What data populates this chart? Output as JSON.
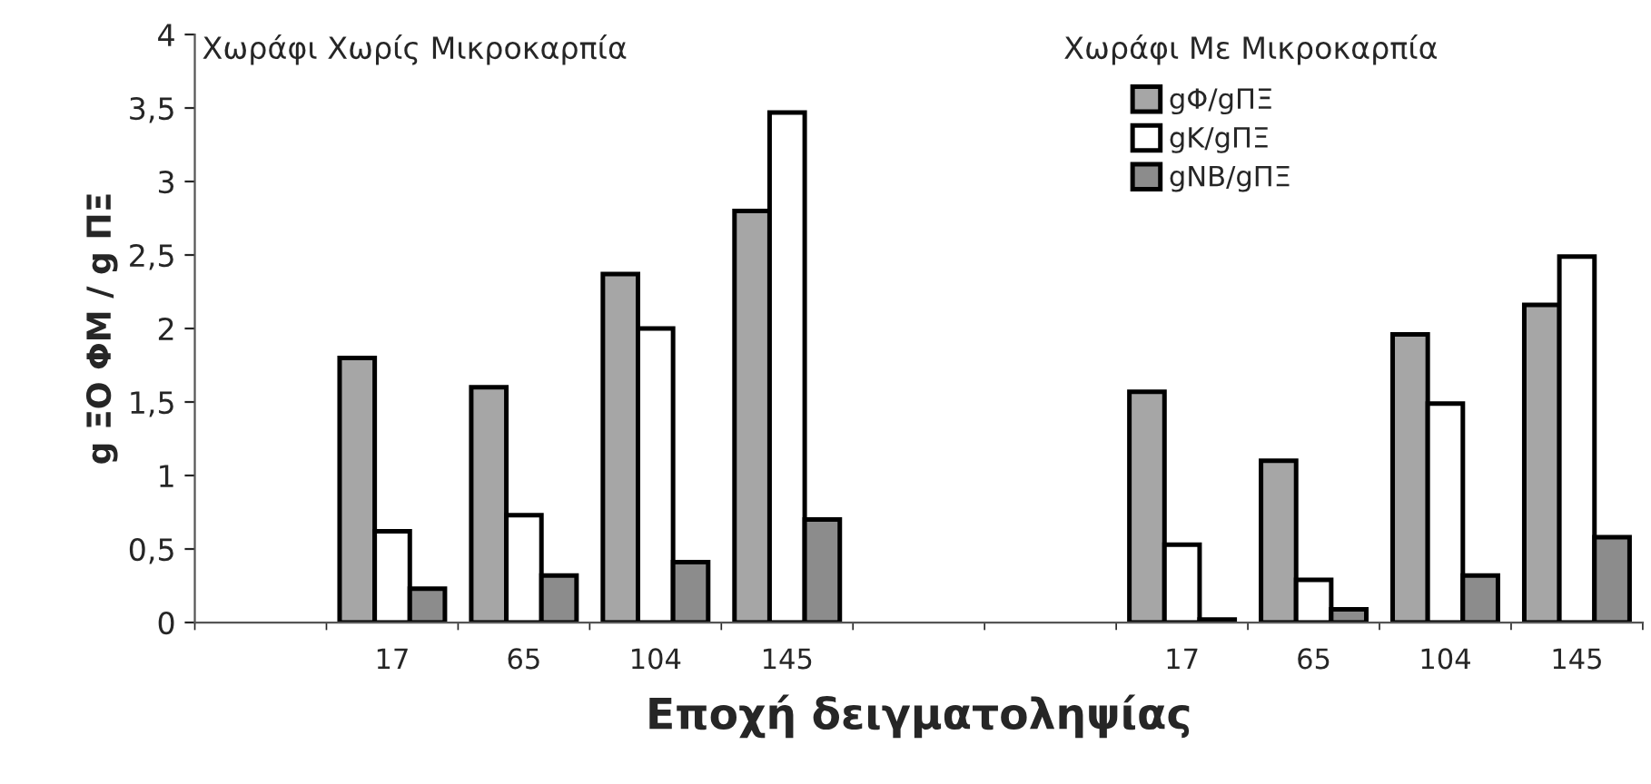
{
  "chart_data": {
    "type": "bar",
    "xlabel": "Εποχή δειγματοληψίας",
    "ylabel": "g ΞΟ ΦΜ / g ΠΞ",
    "annotations": [
      "Χωράφι Χωρίς Μικροκαρπία",
      "Χωράφι Με Μικροκαρπία"
    ],
    "categories": [
      null,
      "17",
      "65",
      "104",
      "145",
      null,
      null,
      "17",
      "65",
      "104",
      "145"
    ],
    "series": [
      {
        "name": "gΦ/gΠΞ",
        "color": "#a6a6a6",
        "values": [
          null,
          1.8,
          1.6,
          2.37,
          2.8,
          null,
          null,
          1.57,
          1.1,
          1.96,
          2.16
        ]
      },
      {
        "name": "gK/gΠΞ",
        "color": "#ffffff",
        "values": [
          null,
          0.62,
          0.73,
          2.0,
          3.47,
          null,
          null,
          0.53,
          0.29,
          1.49,
          2.49
        ]
      },
      {
        "name": "gNB/gΠΞ",
        "color": "#8c8c8c",
        "values": [
          null,
          0.23,
          0.32,
          0.41,
          0.7,
          null,
          null,
          0.02,
          0.09,
          0.32,
          0.58
        ]
      }
    ],
    "ylim": [
      0,
      4
    ],
    "yticks": [
      0,
      {
        "value": 0.5,
        "label": "0,5"
      },
      1,
      {
        "value": 1.5,
        "label": "1,5"
      },
      2,
      {
        "value": 2.5,
        "label": "2,5"
      },
      3,
      {
        "value": 3.5,
        "label": "3,5"
      },
      4
    ],
    "grid": false,
    "legend": "top"
  }
}
